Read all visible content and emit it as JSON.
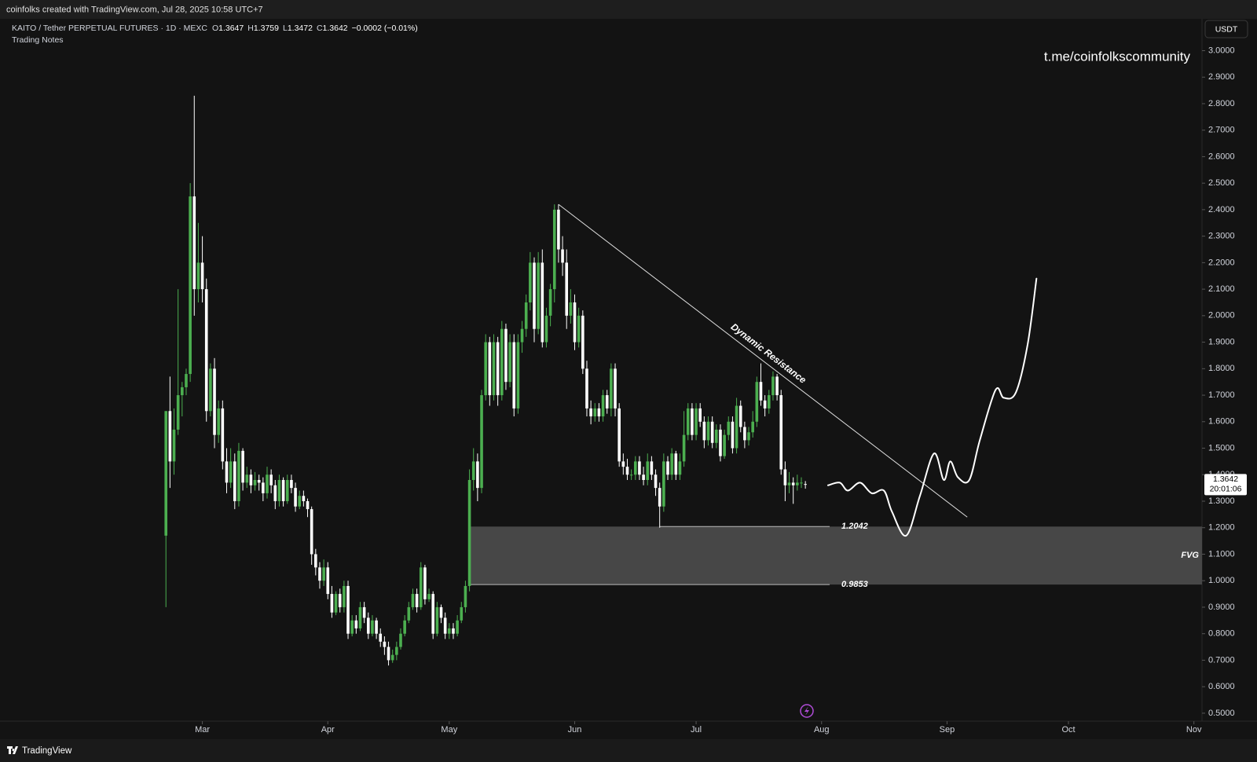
{
  "header": {
    "watermark": "coinfolks created with TradingView.com, Jul 28, 2025 10:58 UTC+7",
    "symbol": "KAITO / Tether PERPETUAL FUTURES · 1D · MEXC",
    "ohlc_labels": [
      "O",
      "H",
      "L",
      "C"
    ],
    "change": "−0.0002 (−0.01%)",
    "indicator": "Trading Notes",
    "currency": "USDT",
    "channel": "t.me/coinfolkscommunity",
    "countdown": "20:01:06",
    "brand": "TradingView"
  },
  "chart_data": {
    "type": "candlestick",
    "x": [
      -9,
      -8,
      -7,
      -6,
      -5,
      -4,
      -3,
      -2,
      -1,
      0,
      1,
      2,
      3,
      4,
      5,
      6,
      7,
      8,
      9,
      10,
      11,
      12,
      13,
      14,
      15,
      16,
      17,
      18,
      19,
      20,
      21,
      22,
      23,
      24,
      25,
      26,
      27,
      28,
      29,
      30,
      31,
      32,
      33,
      34,
      35,
      36,
      37,
      38,
      39,
      40,
      41,
      42,
      43,
      44,
      45,
      46,
      47,
      48,
      49,
      50,
      51,
      52,
      53,
      54,
      55,
      56,
      57,
      58,
      59,
      60,
      61,
      62,
      63,
      64,
      65,
      66,
      67,
      68,
      69,
      70,
      71,
      72,
      73,
      74,
      75,
      76,
      77,
      78,
      79,
      80,
      81,
      82,
      83,
      84,
      85,
      86,
      87,
      88,
      89,
      90,
      91,
      92,
      93,
      94,
      95,
      96,
      97,
      98,
      99,
      100,
      101,
      102,
      103,
      104,
      105,
      106,
      107,
      108,
      109,
      110,
      111,
      112,
      113,
      114,
      115,
      116,
      117,
      118,
      119,
      120,
      121,
      122,
      123,
      124,
      125,
      126,
      127,
      128,
      129,
      130,
      131,
      132,
      133,
      134,
      135,
      136,
      137,
      138,
      139,
      140,
      141,
      142,
      143,
      144,
      145,
      146,
      147,
      148,
      149
    ],
    "open": [
      1.17,
      1.64,
      1.45,
      1.57,
      1.7,
      1.73,
      1.78,
      2.45,
      2.1,
      2.2,
      2.1,
      1.64,
      1.8,
      1.55,
      1.65,
      1.45,
      1.37,
      1.45,
      1.3,
      1.49,
      1.37,
      1.4,
      1.36,
      1.38,
      1.37,
      1.33,
      1.4,
      1.36,
      1.3,
      1.38,
      1.3,
      1.38,
      1.35,
      1.28,
      1.32,
      1.3,
      1.27,
      1.1,
      1.05,
      1.0,
      1.05,
      0.95,
      0.88,
      0.95,
      0.9,
      0.98,
      0.8,
      0.85,
      0.82,
      0.9,
      0.86,
      0.8,
      0.85,
      0.8,
      0.77,
      0.75,
      0.7,
      0.72,
      0.75,
      0.8,
      0.85,
      0.9,
      0.95,
      0.9,
      1.05,
      0.93,
      0.95,
      0.8,
      0.9,
      0.86,
      0.8,
      0.82,
      0.8,
      0.85,
      0.9,
      0.98,
      1.38,
      1.45,
      1.35,
      1.7,
      1.9,
      1.7,
      1.9,
      1.7,
      1.95,
      1.75,
      1.9,
      1.65,
      1.9,
      1.95,
      2.05,
      2.2,
      1.95,
      2.2,
      1.9,
      2.0,
      2.1,
      2.4,
      2.25,
      2.2,
      2.0,
      2.05,
      1.9,
      2.0,
      1.8,
      1.65,
      1.62,
      1.65,
      1.62,
      1.7,
      1.65,
      1.8,
      1.65,
      1.45,
      1.43,
      1.4,
      1.4,
      1.45,
      1.4,
      1.38,
      1.45,
      1.4,
      1.35,
      1.28,
      1.45,
      1.4,
      1.48,
      1.4,
      1.45,
      1.55,
      1.65,
      1.55,
      1.65,
      1.6,
      1.53,
      1.6,
      1.52,
      1.57,
      1.47,
      1.55,
      1.6,
      1.5,
      1.66,
      1.58,
      1.53,
      1.56,
      1.6,
      1.75,
      1.68,
      1.65,
      1.7,
      1.77,
      1.7,
      1.42,
      1.36,
      1.37,
      1.36,
      1.37,
      1.3647
    ],
    "high": [
      1.64,
      1.77,
      1.65,
      2.1,
      1.75,
      1.8,
      2.5,
      2.83,
      2.35,
      2.3,
      2.14,
      1.82,
      1.84,
      1.68,
      1.68,
      1.5,
      1.5,
      1.48,
      1.52,
      1.5,
      1.43,
      1.42,
      1.41,
      1.4,
      1.39,
      1.43,
      1.42,
      1.38,
      1.4,
      1.39,
      1.4,
      1.4,
      1.37,
      1.34,
      1.34,
      1.31,
      1.28,
      1.12,
      1.07,
      1.08,
      1.07,
      0.98,
      0.96,
      0.97,
      1.0,
      1.0,
      0.87,
      0.87,
      0.92,
      0.92,
      0.88,
      0.87,
      0.86,
      0.82,
      0.79,
      0.77,
      0.74,
      0.77,
      0.82,
      0.87,
      0.92,
      0.97,
      0.97,
      1.07,
      1.06,
      0.97,
      0.96,
      0.92,
      0.91,
      0.88,
      0.84,
      0.84,
      0.87,
      0.92,
      1.0,
      1.42,
      1.5,
      1.48,
      1.72,
      1.93,
      1.92,
      1.93,
      1.92,
      1.98,
      1.97,
      1.93,
      1.93,
      1.93,
      1.98,
      2.08,
      2.24,
      2.22,
      2.24,
      2.25,
      2.03,
      2.12,
      2.42,
      2.42,
      2.3,
      2.25,
      2.1,
      2.08,
      2.03,
      2.02,
      1.83,
      1.68,
      1.67,
      1.67,
      1.72,
      1.72,
      1.82,
      1.82,
      1.67,
      1.48,
      1.46,
      1.42,
      1.47,
      1.47,
      1.43,
      1.48,
      1.47,
      1.42,
      1.37,
      1.48,
      1.47,
      1.5,
      1.49,
      1.48,
      1.64,
      1.67,
      1.67,
      1.67,
      1.67,
      1.62,
      1.62,
      1.62,
      1.59,
      1.59,
      1.57,
      1.62,
      1.62,
      1.69,
      1.68,
      1.6,
      1.58,
      1.64,
      1.77,
      1.82,
      1.7,
      1.72,
      1.79,
      1.78,
      1.72,
      1.45,
      1.41,
      1.39,
      1.4,
      1.39,
      1.3759
    ],
    "low": [
      0.9,
      1.35,
      1.4,
      1.55,
      1.62,
      1.7,
      1.75,
      2.0,
      2.05,
      2.05,
      1.6,
      1.62,
      1.5,
      1.52,
      1.42,
      1.33,
      1.35,
      1.27,
      1.28,
      1.34,
      1.35,
      1.33,
      1.34,
      1.34,
      1.3,
      1.31,
      1.33,
      1.27,
      1.28,
      1.28,
      1.29,
      1.33,
      1.26,
      1.27,
      1.28,
      1.24,
      1.06,
      1.02,
      0.97,
      0.98,
      0.93,
      0.86,
      0.87,
      0.88,
      0.88,
      0.78,
      0.79,
      0.8,
      0.81,
      0.84,
      0.78,
      0.79,
      0.78,
      0.75,
      0.72,
      0.68,
      0.69,
      0.7,
      0.74,
      0.79,
      0.84,
      0.89,
      0.88,
      0.89,
      0.91,
      0.92,
      0.78,
      0.79,
      0.84,
      0.78,
      0.78,
      0.78,
      0.79,
      0.84,
      0.88,
      0.96,
      1.34,
      1.3,
      1.33,
      1.68,
      1.66,
      1.68,
      1.66,
      1.68,
      1.72,
      1.73,
      1.62,
      1.63,
      1.86,
      1.92,
      2.02,
      1.9,
      1.93,
      1.88,
      1.88,
      1.96,
      2.05,
      2.2,
      2.15,
      1.95,
      1.97,
      1.87,
      1.88,
      1.78,
      1.62,
      1.59,
      1.6,
      1.6,
      1.6,
      1.63,
      1.62,
      1.62,
      1.43,
      1.4,
      1.38,
      1.38,
      1.38,
      1.38,
      1.36,
      1.36,
      1.38,
      1.32,
      1.2,
      1.26,
      1.38,
      1.38,
      1.38,
      1.38,
      1.43,
      1.53,
      1.53,
      1.53,
      1.58,
      1.5,
      1.51,
      1.5,
      1.5,
      1.45,
      1.46,
      1.53,
      1.48,
      1.48,
      1.56,
      1.5,
      1.51,
      1.54,
      1.58,
      1.66,
      1.62,
      1.63,
      1.68,
      1.68,
      1.4,
      1.3,
      1.33,
      1.29,
      1.34,
      1.35,
      1.3472
    ],
    "close": [
      1.64,
      1.45,
      1.57,
      1.7,
      1.73,
      1.78,
      2.45,
      2.1,
      2.2,
      2.1,
      1.64,
      1.8,
      1.55,
      1.65,
      1.45,
      1.37,
      1.45,
      1.3,
      1.49,
      1.37,
      1.4,
      1.36,
      1.38,
      1.37,
      1.33,
      1.4,
      1.36,
      1.3,
      1.38,
      1.3,
      1.38,
      1.35,
      1.28,
      1.32,
      1.3,
      1.27,
      1.1,
      1.05,
      1.0,
      1.05,
      0.95,
      0.88,
      0.95,
      0.9,
      0.98,
      0.8,
      0.85,
      0.82,
      0.9,
      0.86,
      0.8,
      0.85,
      0.8,
      0.77,
      0.75,
      0.7,
      0.72,
      0.75,
      0.8,
      0.85,
      0.9,
      0.95,
      0.9,
      1.05,
      0.93,
      0.95,
      0.8,
      0.9,
      0.86,
      0.8,
      0.82,
      0.8,
      0.85,
      0.9,
      0.98,
      1.38,
      1.45,
      1.35,
      1.7,
      1.9,
      1.7,
      1.9,
      1.7,
      1.95,
      1.75,
      1.9,
      1.65,
      1.9,
      1.95,
      2.05,
      2.2,
      1.95,
      2.2,
      1.9,
      2.0,
      2.1,
      2.4,
      2.25,
      2.2,
      2.0,
      2.05,
      1.9,
      2.0,
      1.8,
      1.65,
      1.62,
      1.65,
      1.62,
      1.7,
      1.65,
      1.8,
      1.65,
      1.45,
      1.43,
      1.4,
      1.4,
      1.45,
      1.4,
      1.38,
      1.45,
      1.4,
      1.35,
      1.28,
      1.45,
      1.4,
      1.48,
      1.4,
      1.45,
      1.55,
      1.65,
      1.55,
      1.65,
      1.6,
      1.53,
      1.6,
      1.52,
      1.57,
      1.47,
      1.55,
      1.6,
      1.5,
      1.66,
      1.58,
      1.53,
      1.56,
      1.6,
      1.75,
      1.68,
      1.65,
      1.7,
      1.77,
      1.7,
      1.42,
      1.36,
      1.37,
      1.36,
      1.37,
      1.37,
      1.3642
    ],
    "up_color": "#4caf50",
    "down_color": "#ffffff",
    "xlim": [
      -50,
      247
    ],
    "xticks": [
      {
        "value": 0,
        "label": "Mar"
      },
      {
        "value": 31,
        "label": "Apr"
      },
      {
        "value": 61,
        "label": "May"
      },
      {
        "value": 92,
        "label": "Jun"
      },
      {
        "value": 122,
        "label": "Jul"
      },
      {
        "value": 153,
        "label": "Aug"
      },
      {
        "value": 184,
        "label": "Sep"
      },
      {
        "value": 214,
        "label": "Oct"
      },
      {
        "value": 245,
        "label": "Nov"
      }
    ],
    "ylim": [
      0.47,
      3.12
    ],
    "yticks": [
      {
        "value": 0.5,
        "label": "0.5000"
      },
      {
        "value": 0.6,
        "label": "0.6000"
      },
      {
        "value": 0.7,
        "label": "0.7000"
      },
      {
        "value": 0.8,
        "label": "0.8000"
      },
      {
        "value": 0.9,
        "label": "0.9000"
      },
      {
        "value": 1.0,
        "label": "1.0000"
      },
      {
        "value": 1.1,
        "label": "1.1000"
      },
      {
        "value": 1.2,
        "label": "1.2000"
      },
      {
        "value": 1.3,
        "label": "1.3000"
      },
      {
        "value": 1.4,
        "label": "1.4000"
      },
      {
        "value": 1.5,
        "label": "1.5000"
      },
      {
        "value": 1.6,
        "label": "1.6000"
      },
      {
        "value": 1.7,
        "label": "1.7000"
      },
      {
        "value": 1.8,
        "label": "1.8000"
      },
      {
        "value": 1.9,
        "label": "1.9000"
      },
      {
        "value": 2.0,
        "label": "2.0000"
      },
      {
        "value": 2.1,
        "label": "2.1000"
      },
      {
        "value": 2.2,
        "label": "2.2000"
      },
      {
        "value": 2.3,
        "label": "2.3000"
      },
      {
        "value": 2.4,
        "label": "2.4000"
      },
      {
        "value": 2.5,
        "label": "2.5000"
      },
      {
        "value": 2.6,
        "label": "2.6000"
      },
      {
        "value": 2.7,
        "label": "2.7000"
      },
      {
        "value": 2.8,
        "label": "2.8000"
      },
      {
        "value": 2.9,
        "label": "2.9000"
      },
      {
        "value": 3.0,
        "label": "3.0000"
      }
    ],
    "grid": false,
    "trendline": {
      "label": "Dynamic Resistance",
      "x": [
        88,
        189
      ],
      "y": [
        2.42,
        1.24
      ]
    },
    "fvg": {
      "label": "FVG",
      "top": 1.2042,
      "bottom": 0.9853,
      "x": [
        66,
        247
      ],
      "top_line_x": [
        113,
        155
      ],
      "bottom_line_x": [
        66,
        155
      ]
    },
    "projection": {
      "x": [
        154.6,
        157.5,
        159.5,
        162.5,
        165.4,
        168.4,
        170.4,
        173.9,
        177.3,
        180.8,
        183.2,
        184.8,
        186.7,
        189.5,
        192.1,
        196,
        198,
        201,
        203.9,
        206.1
      ],
      "y": [
        1.36,
        1.37,
        1.34,
        1.37,
        1.33,
        1.34,
        1.26,
        1.17,
        1.32,
        1.48,
        1.38,
        1.45,
        1.39,
        1.38,
        1.53,
        1.72,
        1.69,
        1.71,
        1.89,
        2.14
      ]
    }
  }
}
